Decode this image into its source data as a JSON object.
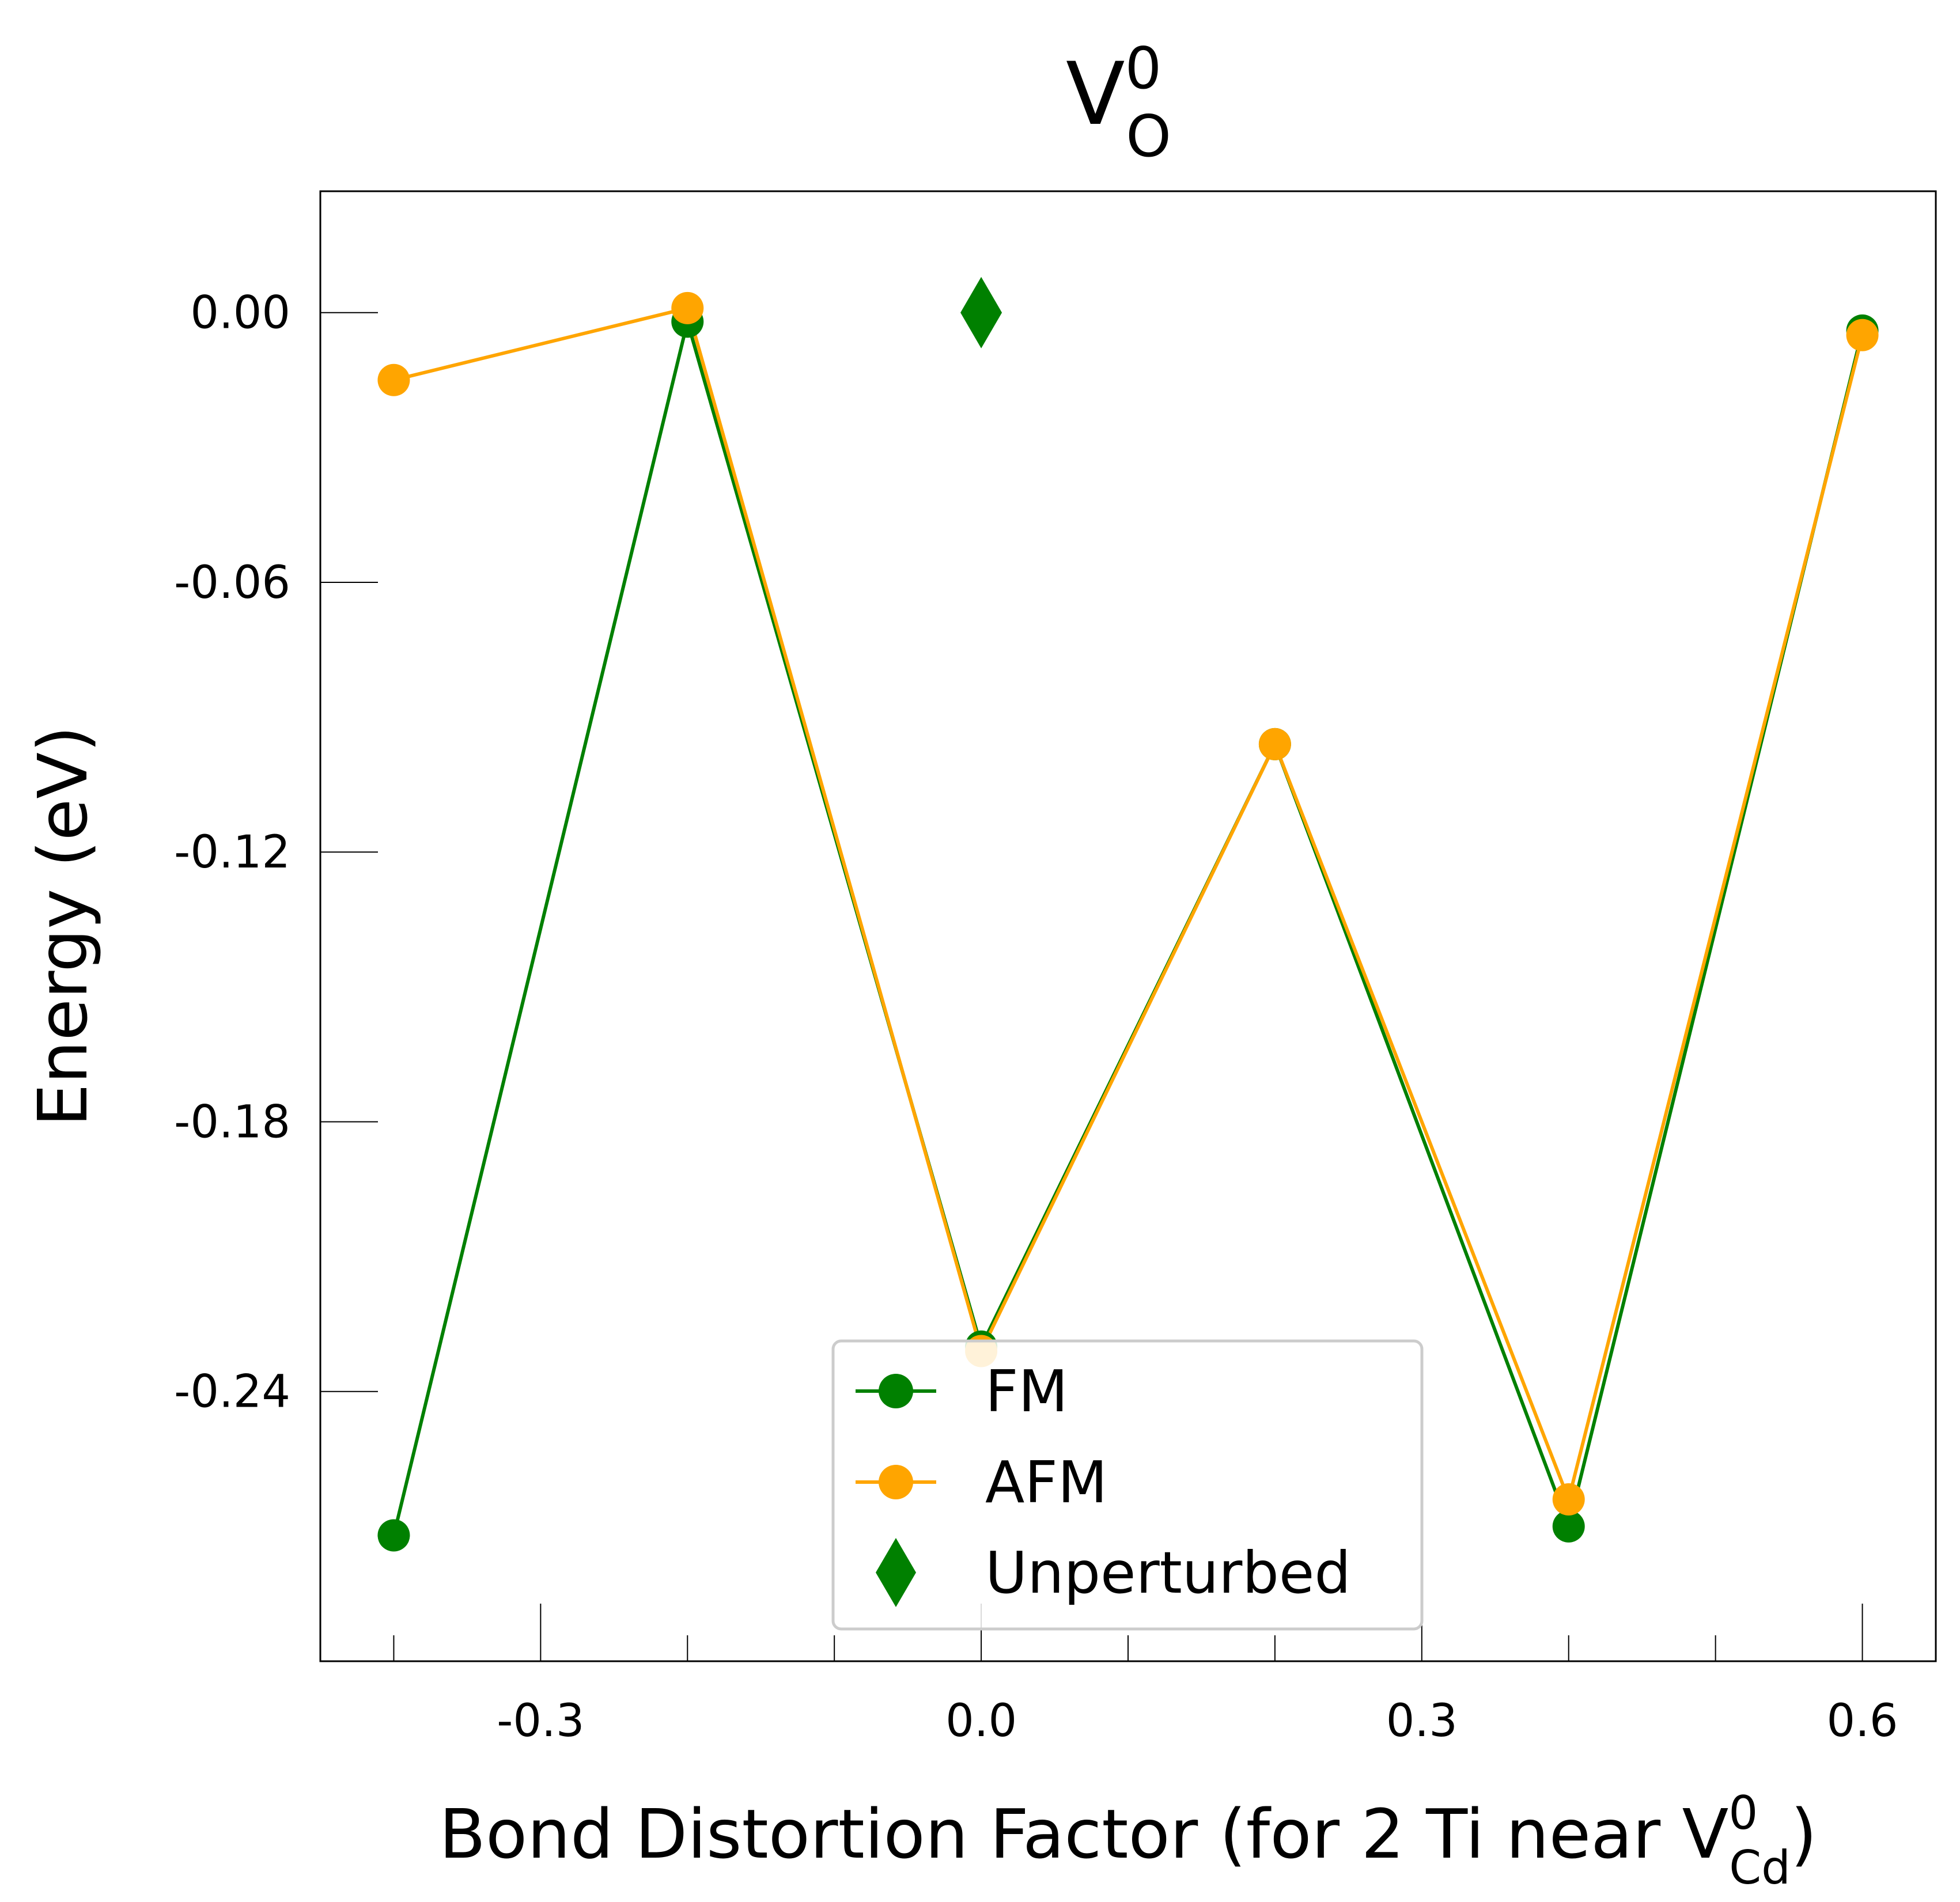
{
  "chart_data": {
    "type": "line",
    "title": {
      "main": "V",
      "sup": "0",
      "sub": "O"
    },
    "xlabel": {
      "text": "Bond Distortion Factor (for 2 Ti near V",
      "sup": "0",
      "sub": "Cd",
      "close": ")"
    },
    "ylabel": "Energy (eV)",
    "xlim": [
      -0.45,
      0.65
    ],
    "ylim": [
      -0.3,
      0.027
    ],
    "xticks": [
      -0.3,
      0.0,
      0.3,
      0.6
    ],
    "xtick_labels": [
      "-0.3",
      "0.0",
      "0.3",
      "0.6"
    ],
    "x_minor_ticks": [
      -0.4,
      -0.2,
      -0.1,
      0.1,
      0.2,
      0.4,
      0.5
    ],
    "yticks": [
      0.0,
      -0.06,
      -0.12,
      -0.18,
      -0.24
    ],
    "ytick_labels": [
      "0.00",
      "-0.06",
      "-0.12",
      "-0.18",
      "-0.24"
    ],
    "grid": false,
    "legend_position": "bottom-center",
    "series": [
      {
        "name": "FM",
        "color": "#008000",
        "marker": "circle",
        "x": [
          -0.4,
          -0.2,
          0.0,
          0.2,
          0.4,
          0.6
        ],
        "y": [
          -0.272,
          -0.002,
          -0.23,
          -0.096,
          -0.27,
          -0.004
        ]
      },
      {
        "name": "AFM",
        "color": "#FFA500",
        "marker": "circle",
        "x": [
          -0.4,
          -0.2,
          0.0,
          0.2,
          0.4,
          0.6
        ],
        "y": [
          -0.015,
          0.001,
          -0.231,
          -0.096,
          -0.264,
          -0.005
        ]
      },
      {
        "name": "Unperturbed",
        "color": "#008000",
        "marker": "diamond",
        "x": [
          0.0
        ],
        "y": [
          0.0
        ]
      }
    ]
  }
}
